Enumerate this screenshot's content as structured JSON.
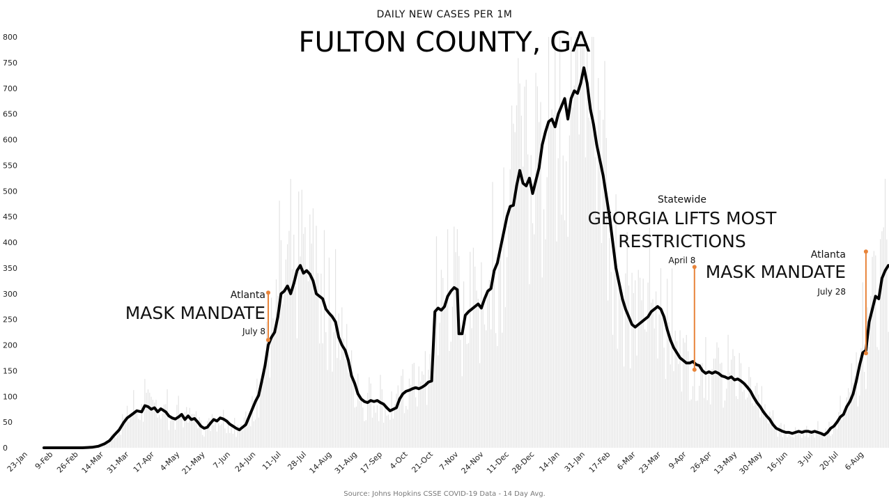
{
  "chart_data": {
    "type": "line",
    "subtitle": "DAILY NEW CASES PER 1M",
    "title": "FULTON COUNTY, GA",
    "source": "Source: Johns Hopkins CSSE COVID-19 Data - 14 Day Avg.",
    "ylim": [
      0,
      800
    ],
    "yticks": [
      0,
      50,
      100,
      150,
      200,
      250,
      300,
      350,
      400,
      450,
      500,
      550,
      600,
      650,
      700,
      750,
      800
    ],
    "x_tick_labels": [
      "23-Jan",
      "9-Feb",
      "26-Feb",
      "14-Mar",
      "31-Mar",
      "17-Apr",
      "4-May",
      "21-May",
      "7-Jun",
      "24-Jun",
      "11-Jul",
      "28-Jul",
      "14-Aug",
      "31-Aug",
      "17-Sep",
      "4-Oct",
      "21-Oct",
      "7-Nov",
      "24-Nov",
      "11-Dec",
      "28-Dec",
      "14-Jan",
      "31-Jan",
      "17-Feb",
      "6-Mar",
      "23-Mar",
      "9-Apr",
      "26-Apr",
      "13-May",
      "30-May",
      "16-Jun",
      "3-Jul",
      "20-Jul",
      "6-Aug"
    ],
    "grid": false,
    "series": [
      {
        "values": [
          [
            0,
            0
          ],
          [
            8,
            0
          ],
          [
            16,
            0
          ],
          [
            24,
            0
          ],
          [
            30,
            1
          ],
          [
            34,
            3
          ],
          [
            38,
            8
          ],
          [
            41,
            14
          ],
          [
            44,
            25
          ],
          [
            47,
            35
          ],
          [
            50,
            50
          ],
          [
            52,
            58
          ],
          [
            55,
            65
          ],
          [
            58,
            72
          ],
          [
            61,
            70
          ],
          [
            63,
            82
          ],
          [
            65,
            80
          ],
          [
            67,
            75
          ],
          [
            69,
            78
          ],
          [
            71,
            70
          ],
          [
            73,
            76
          ],
          [
            76,
            70
          ],
          [
            78,
            62
          ],
          [
            80,
            58
          ],
          [
            82,
            56
          ],
          [
            84,
            60
          ],
          [
            86,
            65
          ],
          [
            88,
            55
          ],
          [
            90,
            62
          ],
          [
            92,
            55
          ],
          [
            94,
            57
          ],
          [
            96,
            50
          ],
          [
            98,
            42
          ],
          [
            100,
            38
          ],
          [
            102,
            40
          ],
          [
            104,
            48
          ],
          [
            106,
            55
          ],
          [
            108,
            52
          ],
          [
            110,
            58
          ],
          [
            112,
            56
          ],
          [
            114,
            52
          ],
          [
            116,
            46
          ],
          [
            118,
            42
          ],
          [
            120,
            38
          ],
          [
            122,
            35
          ],
          [
            124,
            40
          ],
          [
            126,
            45
          ],
          [
            128,
            60
          ],
          [
            130,
            75
          ],
          [
            132,
            90
          ],
          [
            134,
            102
          ],
          [
            136,
            130
          ],
          [
            138,
            160
          ],
          [
            140,
            200
          ],
          [
            142,
            215
          ],
          [
            144,
            225
          ],
          [
            146,
            255
          ],
          [
            148,
            300
          ],
          [
            150,
            305
          ],
          [
            152,
            315
          ],
          [
            154,
            300
          ],
          [
            156,
            320
          ],
          [
            158,
            345
          ],
          [
            160,
            355
          ],
          [
            162,
            340
          ],
          [
            164,
            345
          ],
          [
            166,
            338
          ],
          [
            168,
            325
          ],
          [
            170,
            300
          ],
          [
            172,
            295
          ],
          [
            174,
            290
          ],
          [
            176,
            270
          ],
          [
            178,
            262
          ],
          [
            180,
            255
          ],
          [
            182,
            245
          ],
          [
            184,
            215
          ],
          [
            186,
            200
          ],
          [
            188,
            190
          ],
          [
            190,
            170
          ],
          [
            192,
            140
          ],
          [
            194,
            125
          ],
          [
            196,
            105
          ],
          [
            198,
            95
          ],
          [
            200,
            90
          ],
          [
            202,
            88
          ],
          [
            204,
            92
          ],
          [
            206,
            90
          ],
          [
            208,
            92
          ],
          [
            210,
            88
          ],
          [
            212,
            85
          ],
          [
            214,
            78
          ],
          [
            216,
            72
          ],
          [
            218,
            75
          ],
          [
            220,
            78
          ],
          [
            222,
            95
          ],
          [
            224,
            105
          ],
          [
            226,
            110
          ],
          [
            228,
            112
          ],
          [
            230,
            115
          ],
          [
            232,
            117
          ],
          [
            234,
            115
          ],
          [
            236,
            118
          ],
          [
            238,
            122
          ],
          [
            240,
            128
          ],
          [
            242,
            130
          ],
          [
            244,
            265
          ],
          [
            246,
            272
          ],
          [
            248,
            268
          ],
          [
            250,
            275
          ],
          [
            252,
            295
          ],
          [
            254,
            305
          ],
          [
            256,
            312
          ],
          [
            258,
            308
          ],
          [
            259,
            222
          ],
          [
            261,
            222
          ],
          [
            263,
            258
          ],
          [
            265,
            265
          ],
          [
            267,
            270
          ],
          [
            269,
            275
          ],
          [
            271,
            280
          ],
          [
            273,
            272
          ],
          [
            275,
            290
          ],
          [
            277,
            305
          ],
          [
            279,
            310
          ],
          [
            281,
            345
          ],
          [
            283,
            360
          ],
          [
            285,
            390
          ],
          [
            287,
            420
          ],
          [
            289,
            450
          ],
          [
            291,
            470
          ],
          [
            293,
            472
          ],
          [
            295,
            510
          ],
          [
            297,
            540
          ],
          [
            299,
            515
          ],
          [
            301,
            510
          ],
          [
            303,
            525
          ],
          [
            305,
            495
          ],
          [
            307,
            520
          ],
          [
            309,
            545
          ],
          [
            311,
            590
          ],
          [
            313,
            615
          ],
          [
            315,
            635
          ],
          [
            317,
            640
          ],
          [
            319,
            625
          ],
          [
            321,
            650
          ],
          [
            323,
            665
          ],
          [
            325,
            680
          ],
          [
            327,
            640
          ],
          [
            329,
            680
          ],
          [
            331,
            695
          ],
          [
            333,
            690
          ],
          [
            335,
            710
          ],
          [
            337,
            740
          ],
          [
            339,
            710
          ],
          [
            341,
            660
          ],
          [
            343,
            630
          ],
          [
            345,
            590
          ],
          [
            347,
            560
          ],
          [
            349,
            530
          ],
          [
            351,
            490
          ],
          [
            353,
            450
          ],
          [
            355,
            400
          ],
          [
            357,
            350
          ],
          [
            359,
            320
          ],
          [
            361,
            290
          ],
          [
            363,
            270
          ],
          [
            365,
            255
          ],
          [
            367,
            240
          ],
          [
            369,
            235
          ],
          [
            371,
            240
          ],
          [
            373,
            245
          ],
          [
            375,
            250
          ],
          [
            377,
            255
          ],
          [
            379,
            265
          ],
          [
            381,
            270
          ],
          [
            383,
            275
          ],
          [
            385,
            270
          ],
          [
            387,
            255
          ],
          [
            389,
            230
          ],
          [
            391,
            210
          ],
          [
            393,
            195
          ],
          [
            395,
            185
          ],
          [
            397,
            175
          ],
          [
            399,
            170
          ],
          [
            401,
            165
          ],
          [
            403,
            165
          ],
          [
            405,
            168
          ],
          [
            407,
            162
          ],
          [
            409,
            160
          ],
          [
            411,
            150
          ],
          [
            413,
            145
          ],
          [
            415,
            148
          ],
          [
            417,
            145
          ],
          [
            419,
            148
          ],
          [
            421,
            145
          ],
          [
            423,
            140
          ],
          [
            425,
            138
          ],
          [
            427,
            135
          ],
          [
            429,
            138
          ],
          [
            431,
            132
          ],
          [
            433,
            134
          ],
          [
            435,
            130
          ],
          [
            437,
            125
          ],
          [
            439,
            118
          ],
          [
            441,
            110
          ],
          [
            443,
            98
          ],
          [
            445,
            88
          ],
          [
            447,
            80
          ],
          [
            449,
            70
          ],
          [
            451,
            62
          ],
          [
            453,
            55
          ],
          [
            455,
            45
          ],
          [
            457,
            38
          ],
          [
            459,
            35
          ],
          [
            461,
            32
          ],
          [
            463,
            30
          ],
          [
            465,
            30
          ],
          [
            467,
            28
          ],
          [
            469,
            30
          ],
          [
            471,
            32
          ],
          [
            473,
            30
          ],
          [
            475,
            32
          ],
          [
            477,
            32
          ],
          [
            479,
            30
          ],
          [
            481,
            32
          ],
          [
            483,
            30
          ],
          [
            485,
            28
          ],
          [
            487,
            25
          ],
          [
            489,
            30
          ],
          [
            491,
            38
          ],
          [
            493,
            42
          ],
          [
            495,
            50
          ],
          [
            497,
            60
          ],
          [
            499,
            65
          ],
          [
            501,
            80
          ],
          [
            503,
            90
          ],
          [
            505,
            105
          ],
          [
            507,
            130
          ],
          [
            509,
            160
          ],
          [
            511,
            185
          ],
          [
            513,
            190
          ],
          [
            515,
            245
          ],
          [
            517,
            270
          ],
          [
            519,
            295
          ],
          [
            521,
            290
          ],
          [
            523,
            330
          ],
          [
            525,
            345
          ],
          [
            527,
            355
          ]
        ]
      }
    ],
    "annotations": [
      {
        "top": "Atlanta",
        "label": "MASK MANDATE",
        "date": "July 8",
        "x_day": 140,
        "y_top": 302,
        "y_bottom": 210
      },
      {
        "top": "Statewide",
        "label_line1": "GEORGIA LIFTS MOST",
        "label_line2": "RESTRICTIONS",
        "date": "April 8",
        "x_day": 406,
        "y_top": 352,
        "y_bottom": 152
      },
      {
        "top": "Atlanta",
        "label": "MASK MANDATE",
        "date": "July 28",
        "x_day": 513,
        "y_top": 382,
        "y_bottom": 184
      }
    ]
  }
}
